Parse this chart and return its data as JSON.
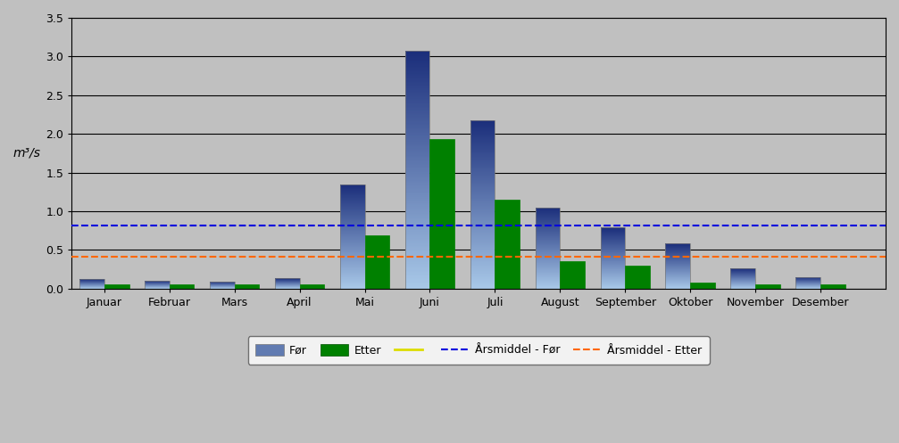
{
  "months": [
    "Januar",
    "Februar",
    "Mars",
    "April",
    "Mai",
    "Juni",
    "Juli",
    "August",
    "September",
    "Oktober",
    "November",
    "Desember"
  ],
  "before_values": [
    0.12,
    0.1,
    0.09,
    0.13,
    1.35,
    3.07,
    2.18,
    1.05,
    0.79,
    0.58,
    0.26,
    0.15
  ],
  "after_values": [
    0.06,
    0.05,
    0.05,
    0.05,
    0.69,
    1.93,
    1.15,
    0.36,
    0.3,
    0.08,
    0.06,
    0.06
  ],
  "annual_mean_before": 0.81,
  "annual_mean_after": 0.41,
  "ylabel": "m³/s",
  "ylim": [
    0,
    3.5
  ],
  "yticks": [
    0.0,
    0.5,
    1.0,
    1.5,
    2.0,
    2.5,
    3.0,
    3.5
  ],
  "bar_width": 0.38,
  "before_color_top": "#1a2d7a",
  "before_color_bottom": "#a8c8e8",
  "after_color": "#008000",
  "after_color_edge": "#005000",
  "line_before_color": "#0000dd",
  "line_after_color": "#ff6600",
  "background_color": "#c0c0c0",
  "plot_bg_color": "#c0c0c0",
  "grid_color": "#000000",
  "axis_color": "#000000",
  "tick_color": "#000000",
  "legend_labels": [
    "Før",
    "Etter",
    "Årsmiddel - Før",
    "Årsmiddel - Etter"
  ]
}
